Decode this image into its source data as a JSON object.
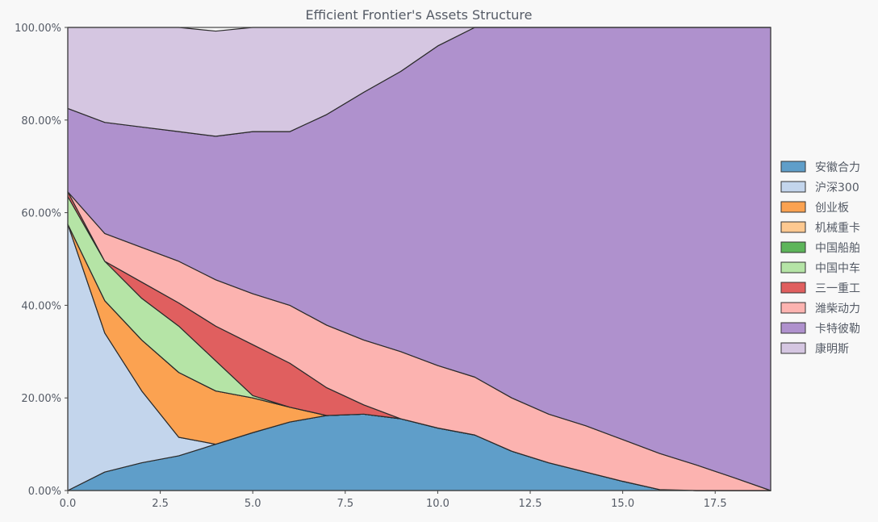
{
  "chart_data": {
    "type": "area",
    "stacked": true,
    "title": "Efficient Frontier's Assets Structure",
    "xlabel": "",
    "ylabel": "",
    "xlim": [
      0,
      19
    ],
    "ylim": [
      0,
      1
    ],
    "xticks": [
      0,
      2.5,
      5,
      7.5,
      10,
      12.5,
      15,
      17.5
    ],
    "xtick_labels": [
      "0.0",
      "2.5",
      "5.0",
      "7.5",
      "10.0",
      "12.5",
      "15.0",
      "17.5"
    ],
    "yticks": [
      0,
      0.2,
      0.4,
      0.6,
      0.8,
      1.0
    ],
    "ytick_labels": [
      "0.00%",
      "20.00%",
      "40.00%",
      "60.00%",
      "80.00%",
      "100.00%"
    ],
    "grid": true,
    "legend_position": "center-right",
    "x": [
      0,
      1,
      2,
      3,
      4,
      5,
      6,
      7,
      8,
      9,
      10,
      11,
      12,
      13,
      14,
      15,
      16,
      17,
      18,
      19
    ],
    "series": [
      {
        "name": "安徽合力",
        "color": "#5f9ec9",
        "values": [
          0,
          0.04,
          0.06,
          0.075,
          0.1,
          0.125,
          0.148,
          0.162,
          0.165,
          0.155,
          0.135,
          0.12,
          0.085,
          0.06,
          0.04,
          0.02,
          0.002,
          0,
          0,
          0
        ]
      },
      {
        "name": "沪深300",
        "color": "#c3d5ec",
        "values": [
          0.575,
          0.3,
          0.155,
          0.04,
          0,
          0,
          0,
          0,
          0,
          0,
          0,
          0,
          0,
          0,
          0,
          0,
          0,
          0,
          0,
          0
        ]
      },
      {
        "name": "创业板",
        "color": "#fba251",
        "values": [
          0,
          0.07,
          0.11,
          0.14,
          0.115,
          0.075,
          0.032,
          0,
          0,
          0,
          0,
          0,
          0,
          0,
          0,
          0,
          0,
          0,
          0,
          0
        ]
      },
      {
        "name": "机械重卡",
        "color": "#fdc890",
        "values": [
          0,
          0,
          0,
          0,
          0,
          0,
          0,
          0,
          0,
          0,
          0,
          0,
          0,
          0,
          0,
          0,
          0,
          0,
          0,
          0
        ]
      },
      {
        "name": "中国船舶",
        "color": "#5db55a",
        "values": [
          0,
          0,
          0,
          0,
          0,
          0,
          0,
          0,
          0,
          0,
          0,
          0,
          0,
          0,
          0,
          0,
          0,
          0,
          0,
          0
        ]
      },
      {
        "name": "中国中车",
        "color": "#b5e4a6",
        "values": [
          0.06,
          0.085,
          0.09,
          0.1,
          0.065,
          0.005,
          0,
          0,
          0,
          0,
          0,
          0,
          0,
          0,
          0,
          0,
          0,
          0,
          0,
          0
        ]
      },
      {
        "name": "三一重工",
        "color": "#e05f5f",
        "values": [
          0.01,
          0,
          0.035,
          0.05,
          0.075,
          0.11,
          0.095,
          0.06,
          0.02,
          0,
          0,
          0,
          0,
          0,
          0,
          0,
          0,
          0,
          0,
          0
        ]
      },
      {
        "name": "潍柴动力",
        "color": "#fcb3b0",
        "values": [
          0,
          0.06,
          0.075,
          0.09,
          0.1,
          0.11,
          0.125,
          0.135,
          0.14,
          0.145,
          0.135,
          0.125,
          0.115,
          0.105,
          0.1,
          0.09,
          0.078,
          0.055,
          0.028,
          0
        ]
      },
      {
        "name": "卡特彼勒",
        "color": "#af91cd",
        "values": [
          0.18,
          0.24,
          0.26,
          0.28,
          0.31,
          0.35,
          0.375,
          0.455,
          0.535,
          0.605,
          0.69,
          0.755,
          0.8,
          0.835,
          0.86,
          0.89,
          0.92,
          0.945,
          0.972,
          1.0
        ]
      },
      {
        "name": "康明斯",
        "color": "#d5c6e1",
        "values": [
          0.175,
          0.205,
          0.215,
          0.225,
          0.227,
          0.225,
          0.225,
          0.188,
          0.14,
          0.095,
          0.04,
          0,
          0,
          0,
          0,
          0,
          0,
          0,
          0,
          0
        ]
      }
    ]
  }
}
